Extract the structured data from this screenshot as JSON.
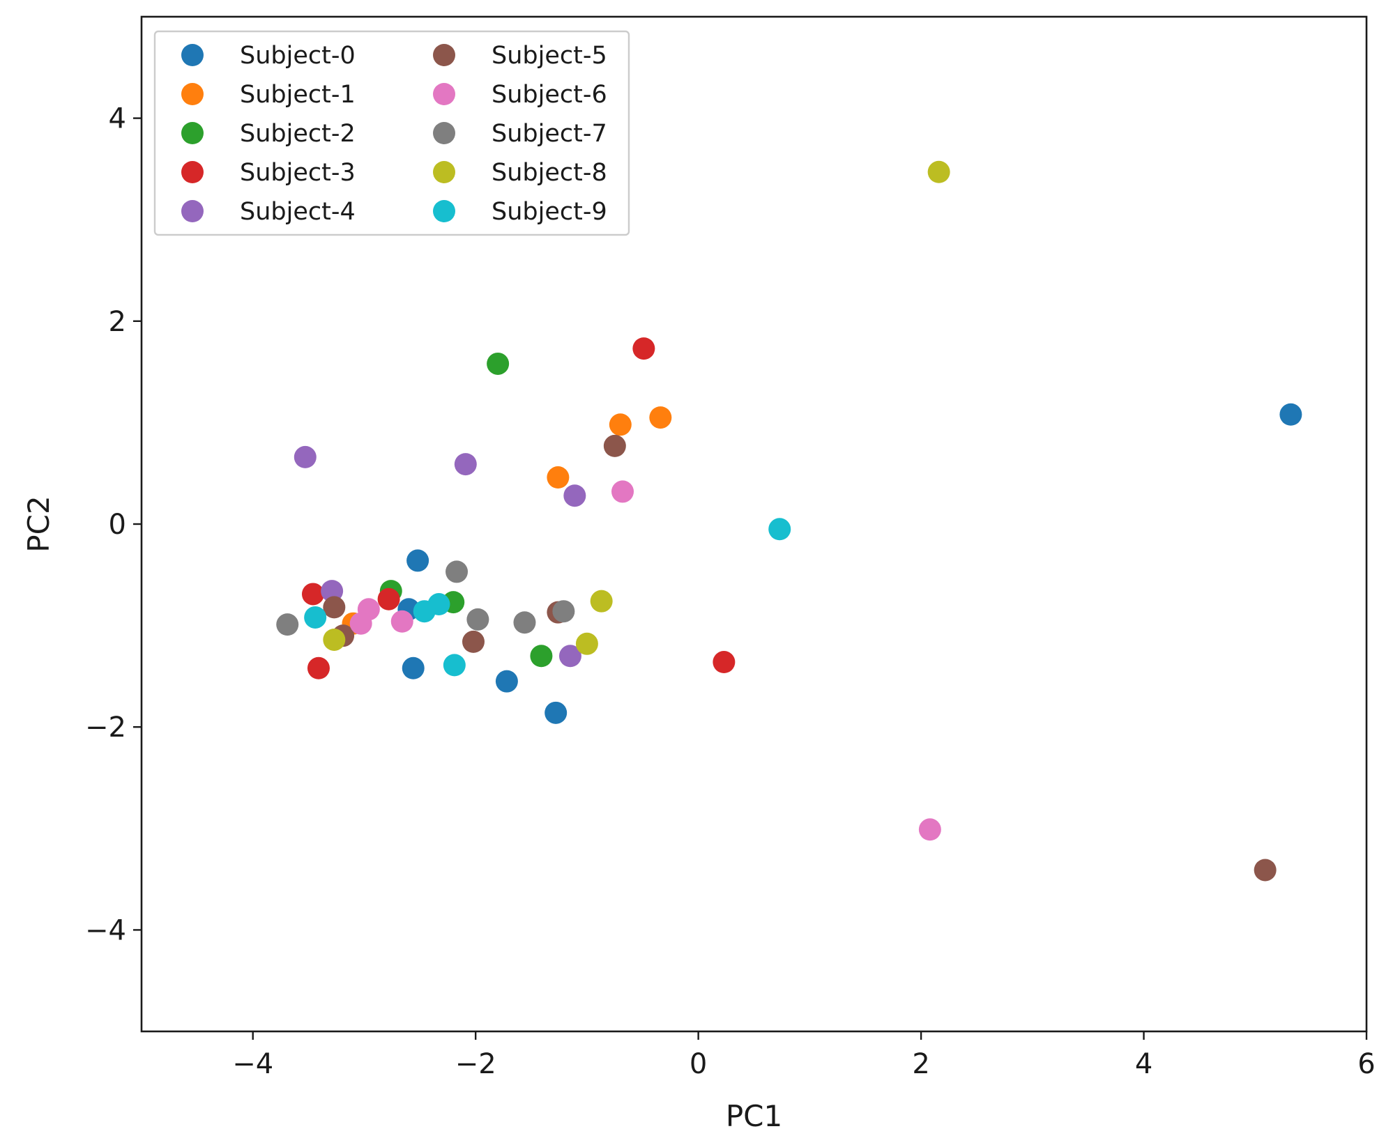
{
  "chart_data": {
    "type": "scatter",
    "title": "",
    "xlabel": "PC1",
    "ylabel": "PC2",
    "xlim": [
      -5,
      6
    ],
    "ylim": [
      -5,
      5
    ],
    "xticks": [
      -4,
      -2,
      0,
      2,
      4,
      6
    ],
    "yticks": [
      -4,
      -2,
      0,
      2,
      4
    ],
    "xtick_labels": [
      "−4",
      "−2",
      "0",
      "2",
      "4",
      "6"
    ],
    "ytick_labels": [
      "−4",
      "−2",
      "0",
      "2",
      "4"
    ],
    "grid": false,
    "legend_position": "top-left",
    "legend_columns": 2,
    "series": [
      {
        "name": "Subject-0",
        "color": "#1f77b4",
        "points": [
          [
            5.32,
            1.08
          ],
          [
            -2.52,
            -0.36
          ],
          [
            -2.6,
            -0.84
          ],
          [
            -2.56,
            -1.42
          ],
          [
            -1.72,
            -1.55
          ],
          [
            -1.28,
            -1.86
          ]
        ]
      },
      {
        "name": "Subject-1",
        "color": "#ff7f0e",
        "points": [
          [
            -0.34,
            1.05
          ],
          [
            -0.7,
            0.98
          ],
          [
            -1.26,
            0.46
          ],
          [
            -3.1,
            -0.98
          ]
        ]
      },
      {
        "name": "Subject-2",
        "color": "#2ca02c",
        "points": [
          [
            -1.8,
            1.58
          ],
          [
            -2.76,
            -0.66
          ],
          [
            -2.2,
            -0.77
          ],
          [
            -1.41,
            -1.3
          ]
        ]
      },
      {
        "name": "Subject-3",
        "color": "#d62728",
        "points": [
          [
            -0.49,
            1.73
          ],
          [
            0.23,
            -1.36
          ],
          [
            -3.46,
            -0.69
          ],
          [
            -2.78,
            -0.74
          ],
          [
            -3.41,
            -1.42
          ]
        ]
      },
      {
        "name": "Subject-4",
        "color": "#9467bd",
        "points": [
          [
            -3.53,
            0.66
          ],
          [
            -2.09,
            0.59
          ],
          [
            -1.11,
            0.28
          ],
          [
            -3.29,
            -0.66
          ],
          [
            -1.15,
            -1.3
          ]
        ]
      },
      {
        "name": "Subject-5",
        "color": "#8c564b",
        "points": [
          [
            -0.75,
            0.77
          ],
          [
            5.09,
            -3.41
          ],
          [
            -3.27,
            -0.82
          ],
          [
            -3.19,
            -1.1
          ],
          [
            -2.02,
            -1.16
          ],
          [
            -1.26,
            -0.87
          ]
        ]
      },
      {
        "name": "Subject-6",
        "color": "#e377c2",
        "points": [
          [
            -0.68,
            0.32
          ],
          [
            2.08,
            -3.01
          ],
          [
            -2.96,
            -0.84
          ],
          [
            -3.03,
            -0.98
          ],
          [
            -2.66,
            -0.96
          ]
        ]
      },
      {
        "name": "Subject-7",
        "color": "#7f7f7f",
        "points": [
          [
            -2.17,
            -0.47
          ],
          [
            -1.21,
            -0.86
          ],
          [
            -1.56,
            -0.97
          ],
          [
            -1.98,
            -0.94
          ],
          [
            -3.69,
            -0.99
          ]
        ]
      },
      {
        "name": "Subject-8",
        "color": "#bcbd22",
        "points": [
          [
            2.16,
            3.47
          ],
          [
            -0.87,
            -0.76
          ],
          [
            -1.0,
            -1.18
          ],
          [
            -3.27,
            -1.14
          ]
        ]
      },
      {
        "name": "Subject-9",
        "color": "#17becf",
        "points": [
          [
            0.73,
            -0.05
          ],
          [
            -2.33,
            -0.79
          ],
          [
            -2.46,
            -0.86
          ],
          [
            -2.19,
            -1.39
          ],
          [
            -3.44,
            -0.92
          ]
        ]
      }
    ]
  }
}
